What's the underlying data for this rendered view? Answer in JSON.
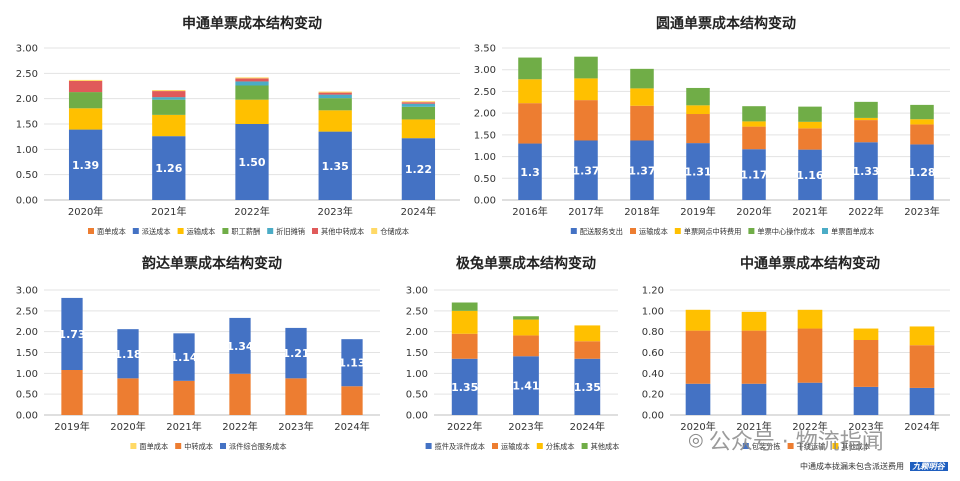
{
  "colors": {
    "blue": "#4472c4",
    "orange": "#ed7d31",
    "gold": "#ffc000",
    "green": "#70ad47",
    "teal": "#4bacc6",
    "red": "#e05a5a",
    "palegold": "#ffd966",
    "navy": "#264478"
  },
  "watermark": {
    "text": "公众号 · 物流指闻",
    "note": "中通成本拢漏未包含派送费用",
    "logo_text": "九颗明谷"
  },
  "chart_data": [
    {
      "id": "sto",
      "type": "bar",
      "stacked": true,
      "title": "申通单票成本结构变动",
      "categories": [
        "2020年",
        "2021年",
        "2022年",
        "2023年",
        "2024年"
      ],
      "ylim": [
        0,
        3.0
      ],
      "yticks": [
        "0.00",
        "0.50",
        "1.00",
        "1.50",
        "2.00",
        "2.50",
        "3.00"
      ],
      "grid": true,
      "legend": "bottom",
      "series": [
        {
          "name": "面单成本",
          "color": "#ed7d31",
          "values": [
            0.0,
            0.0,
            0.0,
            0.0,
            0.0
          ]
        },
        {
          "name": "派送成本",
          "color": "#4472c4",
          "values": [
            1.39,
            1.26,
            1.5,
            1.35,
            1.22
          ],
          "labels": [
            "1.39",
            "1.26",
            "1.50",
            "1.35",
            "1.22"
          ]
        },
        {
          "name": "运输成本",
          "color": "#ffc000",
          "values": [
            0.42,
            0.42,
            0.48,
            0.42,
            0.37
          ]
        },
        {
          "name": "职工薪酬",
          "color": "#70ad47",
          "values": [
            0.32,
            0.3,
            0.28,
            0.24,
            0.25
          ]
        },
        {
          "name": "折旧摊销",
          "color": "#4bacc6",
          "values": [
            0.0,
            0.05,
            0.08,
            0.07,
            0.06
          ]
        },
        {
          "name": "其他中转成本",
          "color": "#e05a5a",
          "values": [
            0.22,
            0.12,
            0.06,
            0.04,
            0.03
          ]
        },
        {
          "name": "仓储成本",
          "color": "#ffd966",
          "values": [
            0.02,
            0.02,
            0.02,
            0.02,
            0.02
          ]
        }
      ]
    },
    {
      "id": "yto",
      "type": "bar",
      "stacked": true,
      "title": "圆通单票成本结构变动",
      "categories": [
        "2016年",
        "2017年",
        "2018年",
        "2019年",
        "2020年",
        "2021年",
        "2022年",
        "2023年"
      ],
      "ylim": [
        0,
        3.5
      ],
      "yticks": [
        "0.00",
        "0.50",
        "1.00",
        "1.50",
        "2.00",
        "2.50",
        "3.00",
        "3.50"
      ],
      "grid": true,
      "legend": "bottom",
      "series": [
        {
          "name": "配送服务支出",
          "color": "#4472c4",
          "values": [
            1.3,
            1.37,
            1.37,
            1.31,
            1.17,
            1.16,
            1.33,
            1.28
          ],
          "labels": [
            "1.3",
            "1.37",
            "1.37",
            "1.31",
            "1.17",
            "1.16",
            "1.33",
            "1.28"
          ]
        },
        {
          "name": "运输成本",
          "color": "#ed7d31",
          "values": [
            0.93,
            0.93,
            0.8,
            0.67,
            0.52,
            0.49,
            0.51,
            0.46
          ]
        },
        {
          "name": "单票网点中转费用",
          "color": "#ffc000",
          "values": [
            0.55,
            0.5,
            0.4,
            0.2,
            0.12,
            0.15,
            0.05,
            0.12
          ]
        },
        {
          "name": "单票中心操作成本",
          "color": "#70ad47",
          "values": [
            0.5,
            0.5,
            0.45,
            0.4,
            0.35,
            0.35,
            0.37,
            0.33
          ]
        },
        {
          "name": "单票面单成本",
          "color": "#4bacc6",
          "values": [
            0.0,
            0.0,
            0.0,
            0.0,
            0.0,
            0.0,
            0.0,
            0.0
          ]
        }
      ]
    },
    {
      "id": "yunda",
      "type": "bar",
      "stacked": true,
      "title": "韵达单票成本结构变动",
      "categories": [
        "2019年",
        "2020年",
        "2021年",
        "2022年",
        "2023年",
        "2024年"
      ],
      "ylim": [
        0,
        3.0
      ],
      "yticks": [
        "0.00",
        "0.50",
        "1.00",
        "1.50",
        "2.00",
        "2.50",
        "3.00"
      ],
      "grid": true,
      "legend": "bottom",
      "series": [
        {
          "name": "面单成本",
          "color": "#ffd966",
          "values": [
            0.0,
            0.0,
            0.0,
            0.0,
            0.0,
            0.0
          ]
        },
        {
          "name": "中转成本",
          "color": "#ed7d31",
          "values": [
            1.08,
            0.88,
            0.82,
            0.99,
            0.88,
            0.69
          ]
        },
        {
          "name": "派件综合服务成本",
          "color": "#4472c4",
          "values": [
            1.73,
            1.18,
            1.14,
            1.34,
            1.21,
            1.13
          ],
          "labels": [
            "1.73",
            "1.18",
            "1.14",
            "1.34",
            "1.21",
            "1.13"
          ]
        }
      ]
    },
    {
      "id": "jt",
      "type": "bar",
      "stacked": true,
      "title": "极兔单票成本结构变动",
      "categories": [
        "2022年",
        "2023年",
        "2024年"
      ],
      "ylim": [
        0,
        3.0
      ],
      "yticks": [
        "0.00",
        "0.50",
        "1.00",
        "1.50",
        "2.00",
        "2.50",
        "3.00"
      ],
      "grid": true,
      "legend": "bottom",
      "series": [
        {
          "name": "揽件及派件成本",
          "color": "#4472c4",
          "values": [
            1.35,
            1.41,
            1.35
          ],
          "labels": [
            "1.35",
            "1.41",
            "1.35"
          ]
        },
        {
          "name": "运输成本",
          "color": "#ed7d31",
          "values": [
            0.6,
            0.5,
            0.42
          ]
        },
        {
          "name": "分拣成本",
          "color": "#ffc000",
          "values": [
            0.55,
            0.38,
            0.38
          ]
        },
        {
          "name": "其他成本",
          "color": "#70ad47",
          "values": [
            0.2,
            0.08,
            0.0
          ]
        }
      ]
    },
    {
      "id": "zto",
      "type": "bar",
      "stacked": true,
      "title": "中通单票成本结构变动",
      "categories": [
        "2020年",
        "2021年",
        "2022年",
        "2023年",
        "2024年"
      ],
      "ylim": [
        0,
        1.2
      ],
      "yticks": [
        "0.00",
        "0.20",
        "0.40",
        "0.60",
        "0.80",
        "1.00",
        "1.20"
      ],
      "grid": true,
      "legend": "bottom",
      "series": [
        {
          "name": "包装分拣",
          "color": "#4472c4",
          "values": [
            0.3,
            0.3,
            0.31,
            0.27,
            0.26
          ]
        },
        {
          "name": "干线运输",
          "color": "#ed7d31",
          "values": [
            0.51,
            0.51,
            0.52,
            0.45,
            0.41
          ]
        },
        {
          "name": "其他成本",
          "color": "#ffc000",
          "values": [
            0.2,
            0.18,
            0.18,
            0.11,
            0.18
          ]
        }
      ]
    }
  ]
}
